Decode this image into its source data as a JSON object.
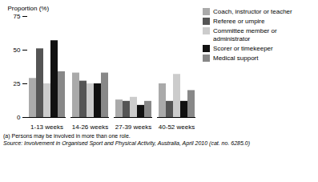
{
  "chart_data": {
    "type": "bar",
    "categories": [
      "1-13 weeks",
      "14-26 weeks",
      "27-39 weeks",
      "40-52 weeks"
    ],
    "series": [
      {
        "name": "Coach, instructor or teacher",
        "color": "#aaaaaa",
        "values": [
          29,
          33,
          13,
          25
        ]
      },
      {
        "name": "Referee or umpire",
        "color": "#555555",
        "values": [
          51,
          27,
          12,
          12
        ]
      },
      {
        "name": "Committee member or administrator",
        "color": "#cccccc",
        "values": [
          25,
          25,
          15,
          32
        ]
      },
      {
        "name": "Scorer or timekeeper",
        "color": "#111111",
        "values": [
          57,
          25,
          9,
          12
        ]
      },
      {
        "name": "Medical support",
        "color": "#888888",
        "values": [
          34,
          33,
          12,
          20
        ]
      }
    ],
    "ylabel": "Proportion (%)",
    "ylim": [
      0,
      75
    ],
    "yticks": [
      0,
      25,
      50,
      75
    ],
    "grid": false,
    "legend": "upper right",
    "annotations": [
      "(a) Persons may be involved in more than one role.",
      "Source: Involvement in Organised Sport and Physical Activity, Australia, April 2010 (cat. no. 6285.0)"
    ]
  }
}
